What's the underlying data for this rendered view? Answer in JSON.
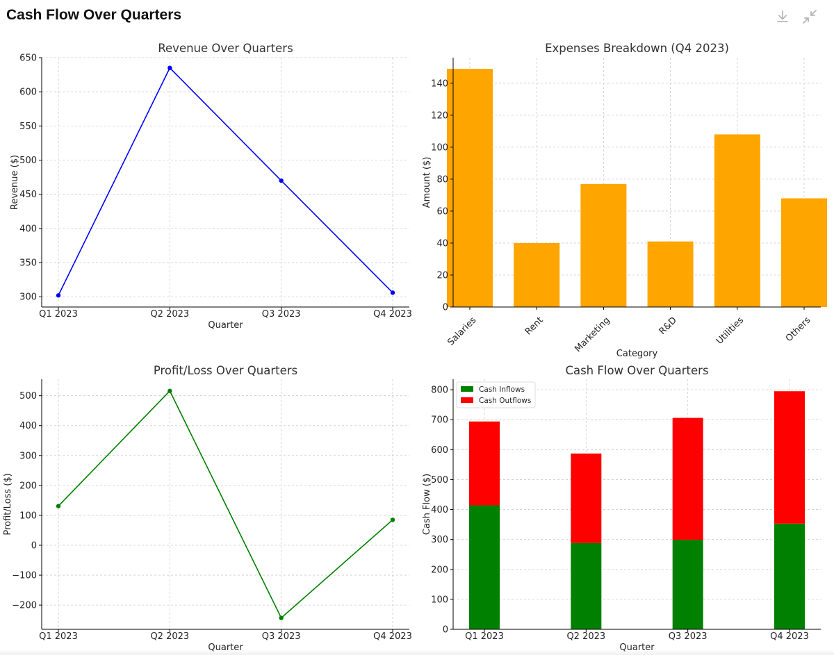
{
  "header": {
    "title": "Cash Flow Over Quarters",
    "download_icon": "download-icon",
    "collapse_icon": "collapse-icon"
  },
  "chart_data": [
    {
      "id": "revenue",
      "type": "line",
      "title": "Revenue Over Quarters",
      "xlabel": "Quarter",
      "ylabel": "Revenue ($)",
      "categories": [
        "Q1 2023",
        "Q2 2023",
        "Q3 2023",
        "Q4 2023"
      ],
      "values": [
        302,
        635,
        470,
        306
      ],
      "ylim": [
        285,
        650
      ],
      "yticks": [
        300,
        350,
        400,
        450,
        500,
        550,
        600,
        650
      ],
      "ytick_labels": [
        "300",
        "350",
        "400",
        "450",
        "500",
        "550",
        "600",
        "650"
      ],
      "color": "#0000ff",
      "grid": true
    },
    {
      "id": "expenses",
      "type": "bar",
      "title": "Expenses Breakdown (Q4 2023)",
      "xlabel": "Category",
      "ylabel": "Amount ($)",
      "categories": [
        "Salaries",
        "Rent",
        "Marketing",
        "R&D",
        "Utilities",
        "Others"
      ],
      "values": [
        149,
        40,
        77,
        41,
        108,
        68
      ],
      "ylim": [
        0,
        156
      ],
      "yticks": [
        0,
        20,
        40,
        60,
        80,
        100,
        120,
        140
      ],
      "ytick_labels": [
        "0",
        "20",
        "40",
        "60",
        "80",
        "100",
        "120",
        "140"
      ],
      "color": "#ffa500",
      "grid": true
    },
    {
      "id": "profit",
      "type": "line",
      "title": "Profit/Loss Over Quarters",
      "xlabel": "Quarter",
      "ylabel": "Profit/Loss ($)",
      "categories": [
        "Q1 2023",
        "Q2 2023",
        "Q3 2023",
        "Q4 2023"
      ],
      "values": [
        131,
        516,
        -243,
        85
      ],
      "ylim": [
        -281,
        555
      ],
      "yticks": [
        -200,
        -100,
        0,
        100,
        200,
        300,
        400,
        500
      ],
      "ytick_labels": [
        "−200",
        "−100",
        "0",
        "100",
        "200",
        "300",
        "400",
        "500"
      ],
      "color": "#008000",
      "grid": true
    },
    {
      "id": "cashflow",
      "type": "bar",
      "stacked": true,
      "title": "Cash Flow Over Quarters",
      "xlabel": "Quarter",
      "ylabel": "Cash Flow ($)",
      "categories": [
        "Q1 2023",
        "Q2 2023",
        "Q3 2023",
        "Q4 2023"
      ],
      "series": [
        {
          "name": "Cash Inflows",
          "values": [
            414,
            288,
            299,
            353
          ],
          "color": "#008000"
        },
        {
          "name": "Cash Outflows",
          "values": [
            280,
            299,
            407,
            442
          ],
          "color": "#ff0000"
        }
      ],
      "ylim": [
        0,
        835
      ],
      "yticks": [
        0,
        100,
        200,
        300,
        400,
        500,
        600,
        700,
        800
      ],
      "ytick_labels": [
        "0",
        "100",
        "200",
        "300",
        "400",
        "500",
        "600",
        "700",
        "800"
      ],
      "legend": "top-left",
      "grid": true
    }
  ]
}
